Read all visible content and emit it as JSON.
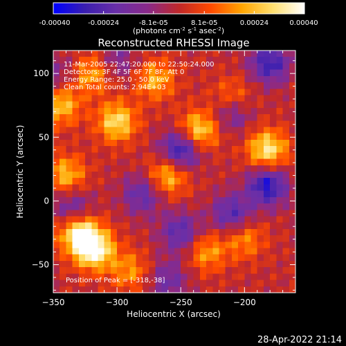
{
  "colorbar": {
    "tick_labels": [
      "-0.00040",
      "-0.00024",
      "-8.1e-05",
      "8.1e-05",
      "0.00024",
      "0.00040"
    ],
    "tick_values": [
      -0.0004,
      -0.00024,
      -8.1e-05,
      8.1e-05,
      0.00024,
      0.0004
    ],
    "range": [
      -0.0004,
      0.0004
    ],
    "units_label": "(photons cm",
    "units_exp1": "-2",
    "units_mid": " s",
    "units_exp2": "-1",
    "units_tail": " asec",
    "units_exp3": "-2",
    "units_close": ")"
  },
  "chart_data": {
    "type": "heatmap",
    "title": "Reconstructed RHESSI Image",
    "xlabel": "Heliocentric X (arcsec)",
    "ylabel": "Heliocentric Y (arcsec)",
    "xlim": [
      -350,
      -160
    ],
    "ylim": [
      -72,
      118
    ],
    "x_ticks": [
      -350,
      -300,
      -250,
      -200
    ],
    "x_tick_labels": [
      "−350",
      "−300",
      "−250",
      "−200"
    ],
    "y_ticks": [
      100,
      50,
      0,
      -50
    ],
    "y_tick_labels": [
      "100",
      "50",
      "0",
      "−50"
    ],
    "colormap": [
      "#0000ff",
      "#3b1fb0",
      "#6a2fa8",
      "#8a2a8a",
      "#c0282a",
      "#ff4a00",
      "#ffa500",
      "#ffe070",
      "#ffffff"
    ],
    "grid": false,
    "annotations": {
      "time": "11-Mar-2005 22:47:20.000 to 22:50:24.000",
      "detectors": "Detectors: 3F 4F 5F 6F 7F 8F, Att 0",
      "energy": "Energy Range: 25.0 - 50.0 keV",
      "clean": "Clean     Total counts: 2.94E+03",
      "peak": "Position of Peak = [-318,-38]"
    },
    "hotspots": [
      {
        "x": -318,
        "y": -38,
        "value": 0.0004
      },
      {
        "x": -330,
        "y": -25,
        "value": 0.00034
      },
      {
        "x": -300,
        "y": 62,
        "value": 0.0003
      },
      {
        "x": -236,
        "y": 55,
        "value": 0.00031
      },
      {
        "x": -182,
        "y": 40,
        "value": 0.00033
      },
      {
        "x": -260,
        "y": 20,
        "value": 0.00026
      },
      {
        "x": -344,
        "y": 75,
        "value": 0.00025
      },
      {
        "x": -270,
        "y": 95,
        "value": 0.00022
      },
      {
        "x": -340,
        "y": 20,
        "value": 0.00024
      },
      {
        "x": -230,
        "y": -40,
        "value": 0.0002
      },
      {
        "x": -200,
        "y": -30,
        "value": 0.00018
      },
      {
        "x": -290,
        "y": -55,
        "value": 0.00018
      },
      {
        "x": -210,
        "y": 80,
        "value": 0.0002
      },
      {
        "x": -320,
        "y": 100,
        "value": 0.00022
      }
    ],
    "coldspots": [
      {
        "x": -250,
        "y": 40,
        "value": -0.00035
      },
      {
        "x": -180,
        "y": 108,
        "value": -0.0003
      },
      {
        "x": -182,
        "y": 12,
        "value": -0.00034
      },
      {
        "x": -210,
        "y": -10,
        "value": -0.00025
      },
      {
        "x": -250,
        "y": -25,
        "value": -0.00024
      },
      {
        "x": -335,
        "y": -5,
        "value": -0.0002
      },
      {
        "x": -210,
        "y": 70,
        "value": -0.00022
      },
      {
        "x": -280,
        "y": 5,
        "value": -0.00022
      },
      {
        "x": -260,
        "y": -62,
        "value": -0.00018
      },
      {
        "x": -300,
        "y": 110,
        "value": -0.00014
      },
      {
        "x": -345,
        "y": 100,
        "value": -0.00012
      }
    ]
  },
  "footer": {
    "date": "28-Apr-2022 21:14"
  }
}
